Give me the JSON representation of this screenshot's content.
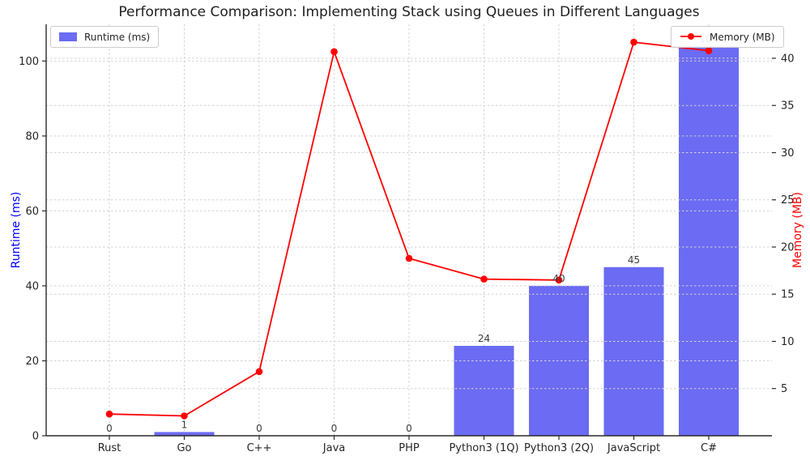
{
  "title": "Performance Comparison: Implementing Stack using Queues in Different Languages",
  "legend": {
    "runtime_label": "Runtime (ms)",
    "memory_label": "Memory (MB)"
  },
  "axes": {
    "left_label": "Runtime (ms)",
    "right_label": "Memory (MB)"
  },
  "colors": {
    "bar": "#6b6bf3",
    "line": "#ff0000",
    "left_axis_label": "#0000ff",
    "right_axis_label": "#ff0000",
    "grid": "#d3d3d3",
    "spine": "#2b2b2b",
    "tick_label": "#262626",
    "bar_label": "#3d3d3d"
  },
  "chart_data": {
    "type": "bar+line",
    "title": "Performance Comparison: Implementing Stack using Queues in Different Languages",
    "categories": [
      "Rust",
      "Go",
      "C++",
      "Java",
      "PHP",
      "Python3 (1Q)",
      "Python3 (2Q)",
      "JavaScript",
      "C#"
    ],
    "series": [
      {
        "name": "Runtime (ms)",
        "type": "bar",
        "axis": "left",
        "values": [
          0,
          1,
          0,
          0,
          0,
          24,
          40,
          45,
          104
        ],
        "labels": [
          "0",
          "1",
          "0",
          "0",
          "0",
          "24",
          "40",
          "45",
          "104"
        ]
      },
      {
        "name": "Memory (MB)",
        "type": "line",
        "axis": "right",
        "values": [
          2.3,
          2.1,
          6.8,
          40.7,
          18.8,
          16.6,
          16.5,
          41.7,
          40.8
        ]
      }
    ],
    "left_axis": {
      "label": "Runtime (ms)",
      "ticks": [
        0,
        20,
        40,
        60,
        80,
        100
      ],
      "lim": [
        0,
        109.8
      ]
    },
    "right_axis": {
      "label": "Memory (MB)",
      "ticks": [
        5,
        10,
        15,
        20,
        25,
        30,
        35,
        40
      ],
      "lim": [
        0,
        43.6
      ]
    },
    "grid": true,
    "legend_position": [
      "upper left",
      "upper right"
    ]
  }
}
